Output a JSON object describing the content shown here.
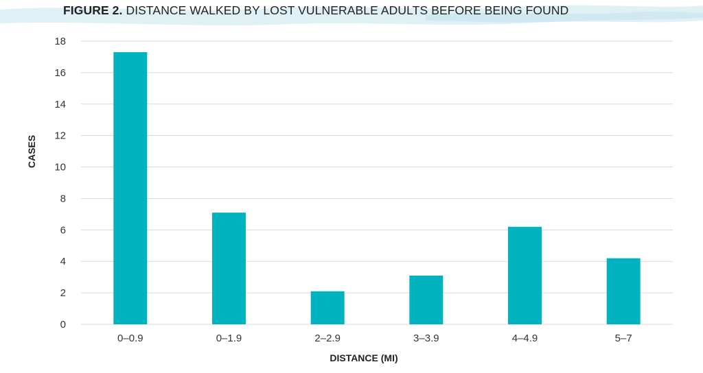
{
  "header": {
    "figure_label": "FIGURE 2.",
    "title": "DISTANCE WALKED BY LOST VULNERABLE ADULTS BEFORE BEING FOUND"
  },
  "colors": {
    "bar": "#00b3bf",
    "grid": "#d9d9d9",
    "brush": "#d4ecf1"
  },
  "chart_data": {
    "type": "bar",
    "title": "FIGURE 2. DISTANCE WALKED BY LOST VULNERABLE ADULTS BEFORE BEING FOUND",
    "xlabel": "DISTANCE (MI)",
    "ylabel": "CASES",
    "categories": [
      "0–0.9",
      "0–1.9",
      "2–2.9",
      "3–3.9",
      "4–4.9",
      "5–7"
    ],
    "values": [
      17.3,
      7.1,
      2.1,
      3.1,
      6.2,
      4.2
    ],
    "ylim": [
      0,
      18
    ],
    "yticks": [
      0,
      2,
      4,
      6,
      8,
      10,
      12,
      14,
      16,
      18
    ],
    "grid": true,
    "legend": null
  }
}
